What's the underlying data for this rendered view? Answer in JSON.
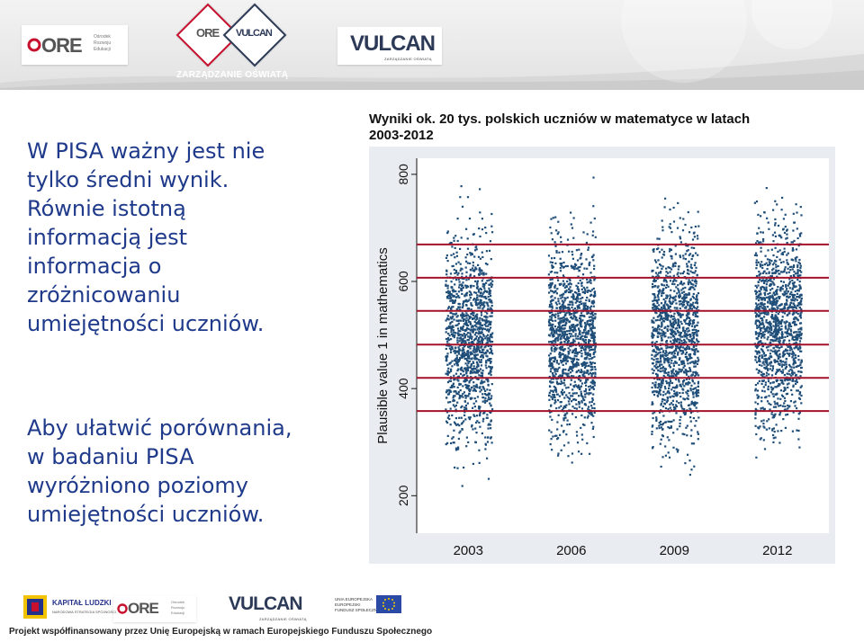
{
  "header": {
    "ore_logo": {
      "word": "ORE",
      "sub": "Ośrodek\nRozwoju\nEdukacji"
    },
    "center_logo": {
      "ore": "ORE",
      "vulcan": "VULCAN",
      "caption": "ZARZĄDZANIE OŚWIATĄ"
    },
    "vulcan_logo": {
      "word": "VULCAN",
      "sub": "ZARZĄDZANIE OŚWIATĄ"
    }
  },
  "body": {
    "paragraph1": [
      "W PISA ważny jest nie",
      "tylko średni wynik.",
      "Równie istotną",
      "informacją jest",
      "informacja o",
      "zróżnicowaniu",
      "umiejętności uczniów."
    ],
    "paragraph2": [
      "Aby ułatwić porównania,",
      "w badaniu PISA",
      "wyróżniono poziomy",
      "umiejętności uczniów."
    ]
  },
  "chart_caption": {
    "line1": "Wyniki ok. 20 tys. polskich uczniów w matematyce w latach",
    "line2": "2003-2012"
  },
  "chart_data": {
    "type": "scatter",
    "title": "",
    "xlabel": "",
    "ylabel": "Plausible value 1 in mathematics",
    "categories": [
      "2003",
      "2006",
      "2009",
      "2012"
    ],
    "ylim": [
      130,
      830
    ],
    "yticks": [
      200,
      400,
      600,
      800
    ],
    "series": [
      {
        "category": "2003",
        "n": 1300,
        "center": 490,
        "min": 130,
        "max": 800
      },
      {
        "category": "2006",
        "n": 1300,
        "center": 495,
        "min": 260,
        "max": 810
      },
      {
        "category": "2009",
        "n": 1300,
        "center": 495,
        "min": 240,
        "max": 790
      },
      {
        "category": "2012",
        "n": 1300,
        "center": 518,
        "min": 270,
        "max": 820
      }
    ],
    "reference_lines": [
      358,
      420,
      482,
      545,
      607,
      669
    ],
    "colors": {
      "points": "#1f4e79",
      "lines": "#a3122a",
      "plot_bg": "#ffffff",
      "frame_bg": "#e9edf1"
    },
    "grid": false
  },
  "footer": {
    "kapital_ludzki": "KAPITAŁ LUDZKI",
    "kapital_sub": "NARODOWA STRATEGIA SPÓJNOŚCI",
    "ore_word": "ORE",
    "ore_sub": "Ośrodek\nRozwoju\nEdukacji",
    "vulcan_word": "VULCAN",
    "vulcan_sub": "ZARZĄDZANIE OŚWIATĄ",
    "ue_label": "UNIA EUROPEJSKA\nEUROPEJSKI\nFUNDUSZ SPOŁECZNY",
    "project_note": "Projekt współfinansowany przez Unię Europejską w ramach Europejskiego Funduszu Społecznego"
  },
  "colors": {
    "text_blue": "#1f3a8a",
    "ore_red": "#c7102e",
    "vulcan_navy": "#2d3a57"
  }
}
